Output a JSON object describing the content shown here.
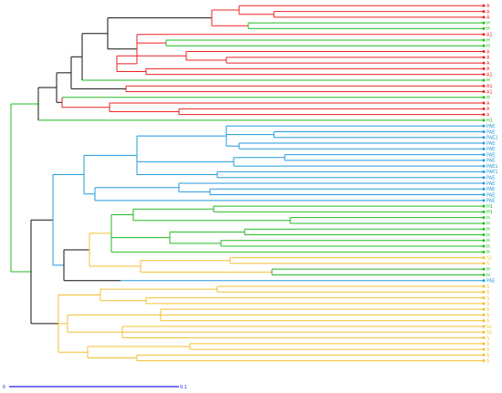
{
  "colors": {
    "cluster_red": "#ee2222",
    "cluster_green": "#22bb22",
    "cluster_blue": "#2299dd",
    "cluster_yellow": "#f0c030",
    "trunk": "#111111",
    "scale_bar": "#2222dd"
  },
  "scale_bar": {
    "start_label": "0",
    "end_label": "0.1",
    "length": 0.1
  },
  "leaves": [
    {
      "label": "A",
      "group": "red"
    },
    {
      "label": "A",
      "group": "red"
    },
    {
      "label": "A",
      "group": "red"
    },
    {
      "label": "H",
      "group": "green"
    },
    {
      "label": "H",
      "group": "green"
    },
    {
      "label": "A1",
      "group": "red"
    },
    {
      "label": "H",
      "group": "green"
    },
    {
      "label": "H",
      "group": "green"
    },
    {
      "label": "A",
      "group": "red"
    },
    {
      "label": "A",
      "group": "red"
    },
    {
      "label": "A",
      "group": "red"
    },
    {
      "label": "A",
      "group": "red"
    },
    {
      "label": "A1",
      "group": "red"
    },
    {
      "label": "H",
      "group": "green"
    },
    {
      "label": "A1",
      "group": "red"
    },
    {
      "label": "A1",
      "group": "red"
    },
    {
      "label": "H",
      "group": "green"
    },
    {
      "label": "A",
      "group": "red"
    },
    {
      "label": "A",
      "group": "red"
    },
    {
      "label": "A",
      "group": "red"
    },
    {
      "label": "H1",
      "group": "green"
    },
    {
      "label": "PAE",
      "group": "blue"
    },
    {
      "label": "PAE",
      "group": "blue"
    },
    {
      "label": "PAE2",
      "group": "blue"
    },
    {
      "label": "PAE",
      "group": "blue"
    },
    {
      "label": "PAE",
      "group": "blue"
    },
    {
      "label": "PAE",
      "group": "blue"
    },
    {
      "label": "PAE",
      "group": "blue"
    },
    {
      "label": "PAE1",
      "group": "blue"
    },
    {
      "label": "PAE1",
      "group": "blue"
    },
    {
      "label": "PAE",
      "group": "blue"
    },
    {
      "label": "PAE",
      "group": "blue"
    },
    {
      "label": "PAE",
      "group": "blue"
    },
    {
      "label": "PAE",
      "group": "blue"
    },
    {
      "label": "PAE",
      "group": "blue"
    },
    {
      "label": "H1",
      "group": "green"
    },
    {
      "label": "H1",
      "group": "green"
    },
    {
      "label": "H",
      "group": "green"
    },
    {
      "label": "H",
      "group": "green"
    },
    {
      "label": "H",
      "group": "green"
    },
    {
      "label": "H",
      "group": "green"
    },
    {
      "label": "H",
      "group": "green"
    },
    {
      "label": "H",
      "group": "green"
    },
    {
      "label": "H",
      "group": "green"
    },
    {
      "label": "S1",
      "group": "yellow"
    },
    {
      "label": "S",
      "group": "yellow"
    },
    {
      "label": "H",
      "group": "green"
    },
    {
      "label": "H",
      "group": "green"
    },
    {
      "label": "PAE",
      "group": "blue"
    },
    {
      "label": "S",
      "group": "yellow"
    },
    {
      "label": "S",
      "group": "yellow"
    },
    {
      "label": "S",
      "group": "yellow"
    },
    {
      "label": "S",
      "group": "yellow"
    },
    {
      "label": "S",
      "group": "yellow"
    },
    {
      "label": "S",
      "group": "yellow"
    },
    {
      "label": "S",
      "group": "yellow"
    },
    {
      "label": "S1",
      "group": "yellow"
    },
    {
      "label": "S1",
      "group": "yellow"
    },
    {
      "label": "S",
      "group": "yellow"
    },
    {
      "label": "S",
      "group": "yellow"
    },
    {
      "label": "S",
      "group": "yellow"
    },
    {
      "label": "S",
      "group": "yellow"
    },
    {
      "label": "S",
      "group": "yellow"
    }
  ]
}
